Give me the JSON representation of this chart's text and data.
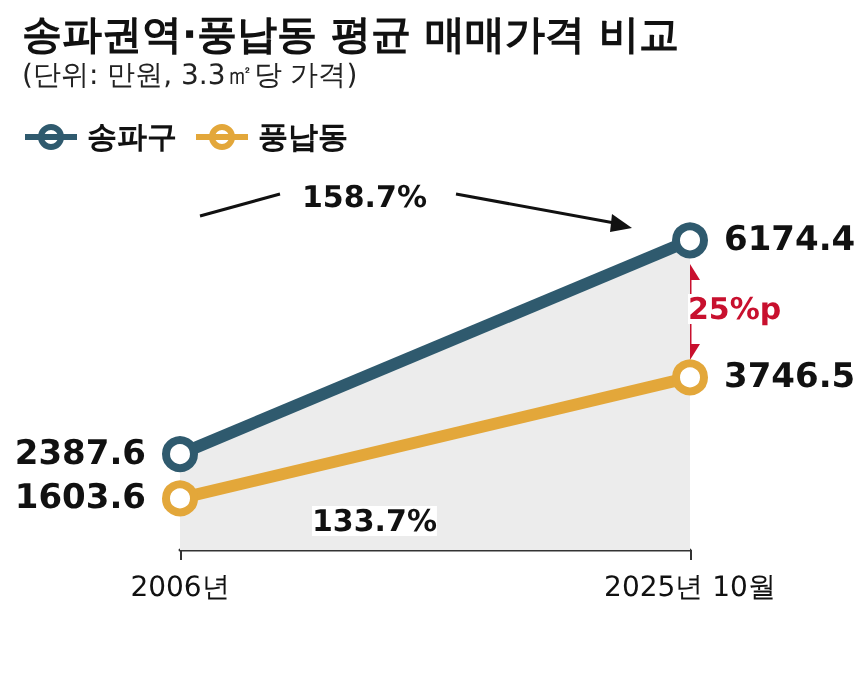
{
  "chart_data": {
    "type": "line",
    "title": "송파권역·풍납동 평균 매매가격 비교",
    "subtitle": "(단위: 만원, 3.3㎡당 가격)",
    "categories": [
      "2006년",
      "2025년 10월"
    ],
    "series": [
      {
        "name": "송파구",
        "type": "area",
        "color": "#2f5a6e",
        "values": [
          2387.6,
          6174.4
        ]
      },
      {
        "name": "풍납동",
        "color": "#e3a73a",
        "values": [
          1603.6,
          3746.5
        ]
      }
    ],
    "annotations": [
      "158.7%",
      "133.7%",
      "25%p"
    ],
    "data_labels": true,
    "legend": "top left",
    "marker": "circle",
    "grid": false
  }
}
